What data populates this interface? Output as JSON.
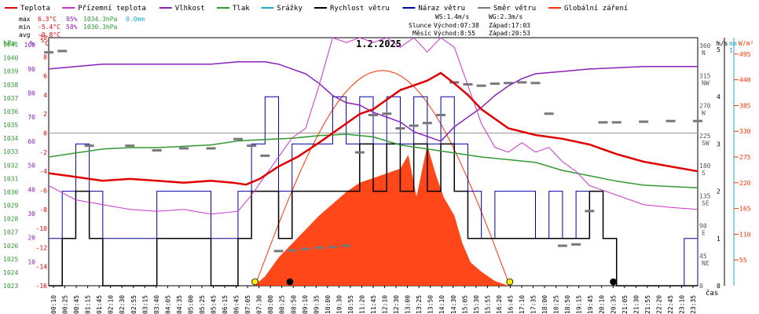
{
  "chart_data": {
    "type": "line",
    "title": "1.2.2025",
    "x_axis_label": "čas",
    "legend": [
      {
        "key": "temp",
        "label": "Teplota",
        "color": "#e00000"
      },
      {
        "key": "feels",
        "label": "Přízemní teplota",
        "color": "#cc33cc"
      },
      {
        "key": "hum",
        "label": "Vlhkost",
        "color": "#8822bb"
      },
      {
        "key": "press",
        "label": "Tlak",
        "color": "#339933"
      },
      {
        "key": "rain",
        "label": "Srážky",
        "color": "#22aacc"
      },
      {
        "key": "ws",
        "label": "Rychlost větru",
        "color": "#000000"
      },
      {
        "key": "wg",
        "label": "Náraz větru",
        "color": "#0000aa"
      },
      {
        "key": "wd",
        "label": "Směr větru",
        "color": "#777777"
      },
      {
        "key": "rad",
        "label": "Globální záření",
        "color": "#ff3300"
      }
    ],
    "stats": {
      "max": {
        "label": "max",
        "temp": "6.3°C",
        "hum": "95%",
        "press": "1034.3hPa",
        "rain": "0.0mm"
      },
      "min": {
        "label": "min",
        "temp": "-5.4°C",
        "hum": "58%",
        "press": "1030.3hPa"
      },
      "avg": {
        "label": "avg",
        "temp": "-0.8°C"
      }
    },
    "info": {
      "ws": "WS:1.4m/s",
      "wg": "WG:2.3m/s",
      "sun_label": "Slunce",
      "sunrise": "Východ:07:38",
      "sunset": "Západ:17:03",
      "moon_label": "Měsíc",
      "moonrise": "Východ:8:55",
      "moonset": "Západ:20:53"
    },
    "axes": {
      "hpa": {
        "unit": "hPa",
        "ticks": [
          "1041",
          "1040",
          "1039",
          "1038",
          "1037",
          "1036",
          "1035",
          "1034",
          "1033",
          "1032",
          "1031",
          "1030",
          "1029",
          "1028",
          "1027",
          "1026",
          "1025",
          "1024",
          "1023"
        ]
      },
      "pct": {
        "unit": "%",
        "ticks": [
          "100",
          "90",
          "80",
          "70",
          "60",
          "50",
          "40",
          "30",
          "20",
          "10"
        ]
      },
      "temp": {
        "unit": "°C",
        "ticks": [
          "10",
          "8",
          "6",
          "4",
          "2",
          "0",
          "-2",
          "-4",
          "-6",
          "-8",
          "-10",
          "-12",
          "-14",
          "-16"
        ]
      },
      "wdir": {
        "unit": "°",
        "ticks": [
          "360",
          "315",
          "270",
          "225",
          "180",
          "135",
          "90",
          "45",
          "0"
        ],
        "labels": [
          "N",
          "NW",
          "W",
          "SW",
          "S",
          "SE",
          "E",
          "NE",
          ""
        ]
      },
      "ms": {
        "unit": "m/s",
        "ticks": [
          "5",
          "4",
          "3",
          "2",
          "1",
          "0"
        ]
      },
      "mm": {
        "unit": "mm",
        "ticks": [
          "1"
        ]
      },
      "wm2": {
        "unit": "W/m²",
        "ticks": [
          "495",
          "440",
          "385",
          "330",
          "275",
          "220",
          "165",
          "110",
          "55"
        ]
      }
    },
    "x_ticks": [
      "00:10",
      "00:25",
      "00:45",
      "01:15",
      "01:45",
      "02:10",
      "02:30",
      "02:55",
      "03:15",
      "03:40",
      "04:05",
      "04:35",
      "05:00",
      "05:25",
      "05:45",
      "06:15",
      "06:45",
      "07:05",
      "07:30",
      "08:00",
      "08:25",
      "08:50",
      "09:10",
      "09:35",
      "10:00",
      "10:30",
      "10:55",
      "11:20",
      "11:45",
      "12:10",
      "12:30",
      "13:00",
      "13:25",
      "13:50",
      "14:10",
      "14:30",
      "15:05",
      "15:30",
      "15:55",
      "16:20",
      "16:45",
      "17:10",
      "17:35",
      "18:00",
      "18:25",
      "18:50",
      "19:15",
      "19:45",
      "20:10",
      "20:35",
      "21:05",
      "21:30",
      "21:55",
      "22:20",
      "22:45",
      "23:10",
      "23:35"
    ],
    "x_range_hours": [
      0,
      24
    ],
    "series": {
      "temp": [
        [
          0,
          -4.2
        ],
        [
          1,
          -4.6
        ],
        [
          2,
          -5.0
        ],
        [
          3,
          -4.8
        ],
        [
          4,
          -5.0
        ],
        [
          5,
          -5.2
        ],
        [
          6,
          -5.0
        ],
        [
          6.8,
          -5.2
        ],
        [
          7.3,
          -5.4
        ],
        [
          7.8,
          -4.8
        ],
        [
          8.5,
          -3.5
        ],
        [
          9.2,
          -2.5
        ],
        [
          10,
          -1.0
        ],
        [
          11,
          1.0
        ],
        [
          11.5,
          2.0
        ],
        [
          12,
          2.5
        ],
        [
          12.5,
          3.5
        ],
        [
          13,
          4.5
        ],
        [
          13.5,
          5.0
        ],
        [
          14,
          5.5
        ],
        [
          14.5,
          6.3
        ],
        [
          15,
          5.2
        ],
        [
          15.5,
          4.0
        ],
        [
          16,
          2.5
        ],
        [
          16.5,
          1.5
        ],
        [
          17,
          0.5
        ],
        [
          18,
          -0.2
        ],
        [
          19,
          -0.6
        ],
        [
          20,
          -1.2
        ],
        [
          21,
          -2.2
        ],
        [
          22,
          -3.0
        ],
        [
          23,
          -3.5
        ],
        [
          24,
          -4.0
        ]
      ],
      "feels": [
        [
          0,
          -5.5
        ],
        [
          1,
          -7.0
        ],
        [
          2,
          -7.5
        ],
        [
          3,
          -8.0
        ],
        [
          4,
          -8.2
        ],
        [
          5,
          -8.0
        ],
        [
          6,
          -8.5
        ],
        [
          7,
          -8.2
        ],
        [
          7.5,
          -6.5
        ],
        [
          8,
          -4.5
        ],
        [
          8.5,
          -2.5
        ],
        [
          9,
          -0.5
        ],
        [
          9.5,
          0.5
        ],
        [
          10,
          5.0
        ],
        [
          10.5,
          10.0
        ],
        [
          11,
          9.5
        ],
        [
          11.5,
          10.0
        ],
        [
          12,
          9.5
        ],
        [
          12.5,
          10.0
        ],
        [
          13,
          9.0
        ],
        [
          13.5,
          10.0
        ],
        [
          14,
          8.5
        ],
        [
          14.5,
          10.0
        ],
        [
          15,
          9.0
        ],
        [
          15.5,
          5.0
        ],
        [
          16,
          1.0
        ],
        [
          16.5,
          -1.5
        ],
        [
          17,
          -2.0
        ],
        [
          17.5,
          -1.0
        ],
        [
          18,
          -2.0
        ],
        [
          18.5,
          -1.5
        ],
        [
          19,
          -3.0
        ],
        [
          19.5,
          -4.0
        ],
        [
          20,
          -5.5
        ],
        [
          21,
          -6.5
        ],
        [
          22,
          -7.5
        ],
        [
          23,
          -7.8
        ],
        [
          24,
          -8.0
        ]
      ],
      "hum": [
        [
          0,
          90
        ],
        [
          1,
          91
        ],
        [
          2,
          92
        ],
        [
          3,
          92
        ],
        [
          4,
          92
        ],
        [
          5,
          92
        ],
        [
          6,
          92
        ],
        [
          7,
          93
        ],
        [
          8,
          93
        ],
        [
          8.5,
          92
        ],
        [
          9,
          90
        ],
        [
          9.5,
          88
        ],
        [
          10,
          84
        ],
        [
          10.5,
          79
        ],
        [
          11,
          76
        ],
        [
          11.5,
          75
        ],
        [
          12,
          72
        ],
        [
          12.5,
          70
        ],
        [
          13,
          68
        ],
        [
          13.5,
          64
        ],
        [
          14,
          62
        ],
        [
          14.5,
          60
        ],
        [
          15,
          66
        ],
        [
          15.5,
          70
        ],
        [
          16,
          74
        ],
        [
          16.5,
          79
        ],
        [
          17,
          83
        ],
        [
          17.5,
          86
        ],
        [
          18,
          88
        ],
        [
          19,
          89
        ],
        [
          20,
          90
        ],
        [
          22,
          91
        ],
        [
          24,
          91
        ]
      ],
      "press": [
        [
          0,
          1032.6
        ],
        [
          1,
          1032.9
        ],
        [
          2,
          1033.2
        ],
        [
          3,
          1033.3
        ],
        [
          4,
          1033.3
        ],
        [
          5,
          1033.4
        ],
        [
          6,
          1033.5
        ],
        [
          7,
          1033.8
        ],
        [
          8,
          1033.9
        ],
        [
          9,
          1034.0
        ],
        [
          10,
          1034.2
        ],
        [
          11,
          1034.3
        ],
        [
          12,
          1034.1
        ],
        [
          13,
          1033.5
        ],
        [
          14,
          1033.2
        ],
        [
          15,
          1032.9
        ],
        [
          16,
          1032.6
        ],
        [
          17,
          1032.4
        ],
        [
          18,
          1032.2
        ],
        [
          19,
          1031.6
        ],
        [
          20,
          1031.2
        ],
        [
          21,
          1030.8
        ],
        [
          22,
          1030.5
        ],
        [
          23,
          1030.4
        ],
        [
          24,
          1030.3
        ]
      ],
      "rad_clear_peak": 460,
      "rad": [
        [
          7.6,
          0
        ],
        [
          8,
          20
        ],
        [
          8.5,
          60
        ],
        [
          9,
          90
        ],
        [
          9.5,
          120
        ],
        [
          10,
          150
        ],
        [
          10.5,
          175
        ],
        [
          11,
          200
        ],
        [
          11.5,
          220
        ],
        [
          12,
          230
        ],
        [
          12.5,
          240
        ],
        [
          13,
          250
        ],
        [
          13.3,
          280
        ],
        [
          13.6,
          190
        ],
        [
          14,
          300
        ],
        [
          14.3,
          240
        ],
        [
          14.6,
          190
        ],
        [
          15,
          150
        ],
        [
          15.3,
          90
        ],
        [
          15.6,
          50
        ],
        [
          16,
          30
        ],
        [
          16.5,
          10
        ],
        [
          17,
          0
        ]
      ],
      "ws": [
        [
          0,
          0
        ],
        [
          0.5,
          1
        ],
        [
          1,
          2
        ],
        [
          1.5,
          1
        ],
        [
          2,
          0
        ],
        [
          2.5,
          0
        ],
        [
          3,
          0
        ],
        [
          4,
          1
        ],
        [
          5,
          1
        ],
        [
          6,
          0
        ],
        [
          7,
          1
        ],
        [
          7.5,
          2
        ],
        [
          8,
          2
        ],
        [
          8.5,
          1
        ],
        [
          9,
          2
        ],
        [
          9.5,
          2
        ],
        [
          10,
          2
        ],
        [
          10.5,
          2
        ],
        [
          11,
          2
        ],
        [
          11.5,
          3
        ],
        [
          12,
          2
        ],
        [
          12.5,
          3
        ],
        [
          13,
          2
        ],
        [
          13.5,
          3
        ],
        [
          14,
          2
        ],
        [
          14.5,
          3
        ],
        [
          15,
          2
        ],
        [
          15.5,
          1
        ],
        [
          16,
          1
        ],
        [
          16.5,
          1
        ],
        [
          17,
          1
        ],
        [
          17.5,
          1
        ],
        [
          18,
          1
        ],
        [
          18.5,
          1
        ],
        [
          19,
          1
        ],
        [
          19.5,
          1
        ],
        [
          20,
          2
        ],
        [
          20.5,
          1
        ],
        [
          21,
          0
        ],
        [
          22,
          0
        ],
        [
          23,
          0
        ],
        [
          24,
          0
        ]
      ],
      "wg": [
        [
          0,
          1
        ],
        [
          0.5,
          2
        ],
        [
          1,
          3
        ],
        [
          1.5,
          2
        ],
        [
          2,
          1
        ],
        [
          2.5,
          1
        ],
        [
          3,
          1
        ],
        [
          4,
          2
        ],
        [
          5,
          2
        ],
        [
          6,
          1
        ],
        [
          7,
          2
        ],
        [
          7.5,
          3
        ],
        [
          8,
          4
        ],
        [
          8.5,
          2
        ],
        [
          9,
          3
        ],
        [
          9.5,
          3
        ],
        [
          10,
          3
        ],
        [
          10.5,
          4
        ],
        [
          11,
          3
        ],
        [
          11.5,
          4
        ],
        [
          12,
          3
        ],
        [
          12.5,
          4
        ],
        [
          13,
          3
        ],
        [
          13.5,
          4
        ],
        [
          14,
          3
        ],
        [
          14.5,
          4
        ],
        [
          15,
          3
        ],
        [
          15.5,
          2
        ],
        [
          16,
          1
        ],
        [
          16.5,
          2
        ],
        [
          17,
          2
        ],
        [
          17.5,
          2
        ],
        [
          18,
          1
        ],
        [
          18.5,
          2
        ],
        [
          19,
          1
        ],
        [
          19.5,
          2
        ],
        [
          20,
          2
        ],
        [
          20.5,
          1
        ],
        [
          21,
          0
        ],
        [
          22,
          0
        ],
        [
          23,
          0
        ],
        [
          23.5,
          1
        ],
        [
          24,
          0
        ]
      ],
      "wd": [
        [
          0,
          350
        ],
        [
          0.5,
          352
        ],
        [
          1.5,
          210
        ],
        [
          3,
          210
        ],
        [
          4,
          203
        ],
        [
          5,
          206
        ],
        [
          6,
          206
        ],
        [
          7,
          220
        ],
        [
          7.5,
          210
        ],
        [
          8,
          195
        ],
        [
          8.5,
          52
        ],
        [
          9,
          53
        ],
        [
          9.5,
          55
        ],
        [
          10,
          57
        ],
        [
          10.5,
          58
        ],
        [
          11,
          60
        ],
        [
          11.5,
          200
        ],
        [
          12,
          256
        ],
        [
          12.5,
          258
        ],
        [
          13,
          236
        ],
        [
          13.5,
          240
        ],
        [
          14,
          244
        ],
        [
          14.5,
          256
        ],
        [
          15,
          305
        ],
        [
          15.5,
          302
        ],
        [
          16,
          300
        ],
        [
          16.5,
          303
        ],
        [
          17,
          304
        ],
        [
          17.5,
          305
        ],
        [
          18,
          304
        ],
        [
          18.5,
          258
        ],
        [
          19,
          60
        ],
        [
          19.5,
          62
        ],
        [
          20,
          112
        ],
        [
          20.5,
          245
        ],
        [
          21,
          245
        ],
        [
          22,
          246
        ],
        [
          23,
          247
        ],
        [
          24,
          247
        ]
      ],
      "rain_total": 0.0
    },
    "markers": {
      "sunrise_h": 7.63,
      "sunset_h": 17.05,
      "moonrise_h": 8.92,
      "moonset_h": 20.88
    }
  }
}
